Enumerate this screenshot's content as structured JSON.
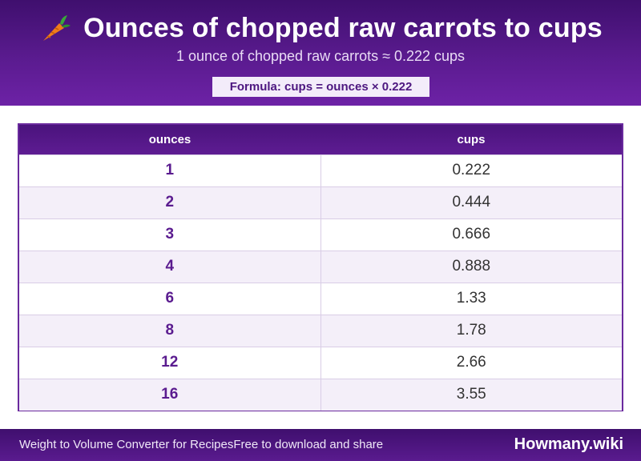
{
  "header": {
    "title": "Ounces of chopped raw carrots to cups",
    "icon": "carrot-icon",
    "subtitle": "1 ounce of chopped raw carrots ≈ 0.222 cups",
    "formula": "Formula: cups = ounces × 0.222"
  },
  "table": {
    "columns": [
      "ounces",
      "cups"
    ],
    "rows": [
      [
        "1",
        "0.222"
      ],
      [
        "2",
        "0.444"
      ],
      [
        "3",
        "0.666"
      ],
      [
        "4",
        "0.888"
      ],
      [
        "6",
        "1.33"
      ],
      [
        "8",
        "1.78"
      ],
      [
        "12",
        "2.66"
      ],
      [
        "16",
        "3.55"
      ]
    ]
  },
  "footer": {
    "left_text": "Weight to Volume Converter for RecipesFree to download and share",
    "brand": "Howmany.wiki"
  },
  "colors": {
    "primary": "#5a1b8f",
    "alt_row": "#f4eff9",
    "carrot": "#f07c1a",
    "carrot_leaf": "#3aa63a"
  }
}
